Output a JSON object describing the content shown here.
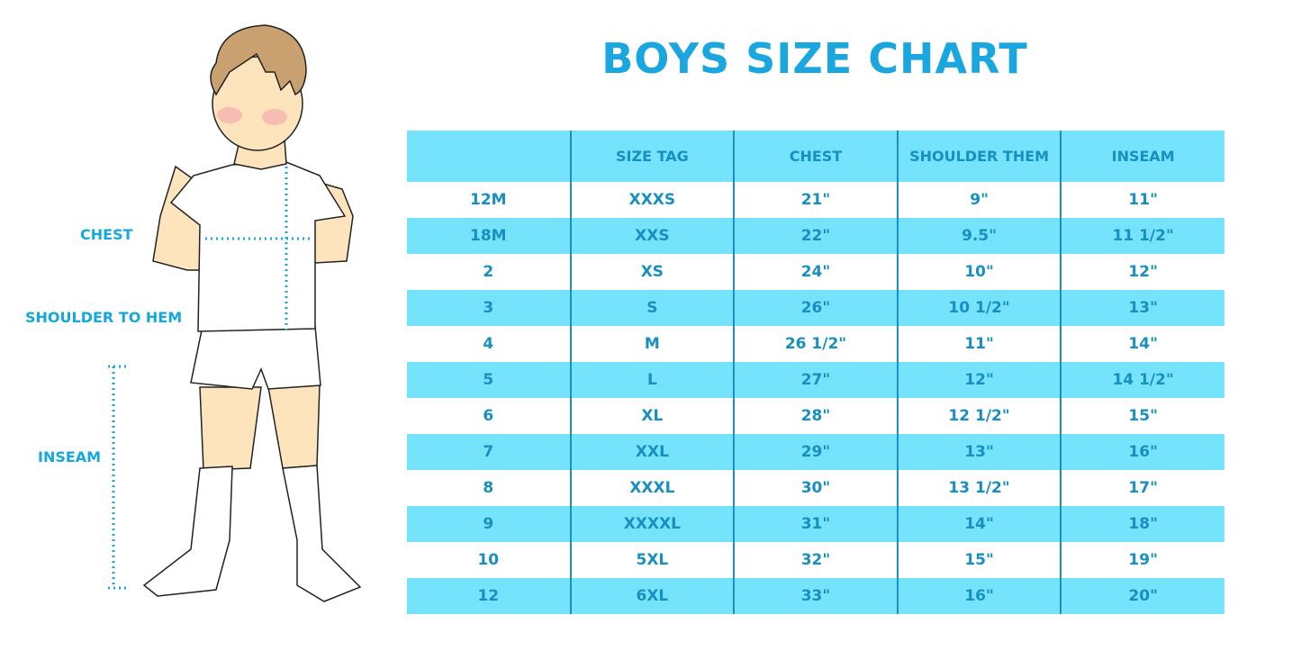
{
  "title": "BOYS SIZE CHART",
  "figure_labels": {
    "chest": "CHEST",
    "shoulder_to_hem": "SHOULDER TO HEM",
    "inseam": "INSEAM"
  },
  "table": {
    "headers": [
      "",
      "SIZE TAG",
      "CHEST",
      "SHOULDER THEM",
      "INSEAM"
    ],
    "rows": [
      [
        "12M",
        "XXXS",
        "21\"",
        "9\"",
        "11\""
      ],
      [
        "18M",
        "XXS",
        "22\"",
        "9.5\"",
        "11 1/2\""
      ],
      [
        "2",
        "XS",
        "24\"",
        "10\"",
        "12\""
      ],
      [
        "3",
        "S",
        "26\"",
        "10 1/2\"",
        "13\""
      ],
      [
        "4",
        "M",
        "26 1/2\"",
        "11\"",
        "14\""
      ],
      [
        "5",
        "L",
        "27\"",
        "12\"",
        "14 1/2\""
      ],
      [
        "6",
        "XL",
        "28\"",
        "12 1/2\"",
        "15\""
      ],
      [
        "7",
        "XXL",
        "29\"",
        "13\"",
        "16\""
      ],
      [
        "8",
        "XXXL",
        "30\"",
        "13 1/2\"",
        "17\""
      ],
      [
        "9",
        "XXXXL",
        "31\"",
        "14\"",
        "18\""
      ],
      [
        "10",
        "5XL",
        "32\"",
        "15\"",
        "19\""
      ],
      [
        "12",
        "6XL",
        "33\"",
        "16\"",
        "20\""
      ]
    ]
  },
  "colors": {
    "title": "#1aa6de",
    "text": "#178fc0",
    "row_highlight": "#76e3fc"
  }
}
